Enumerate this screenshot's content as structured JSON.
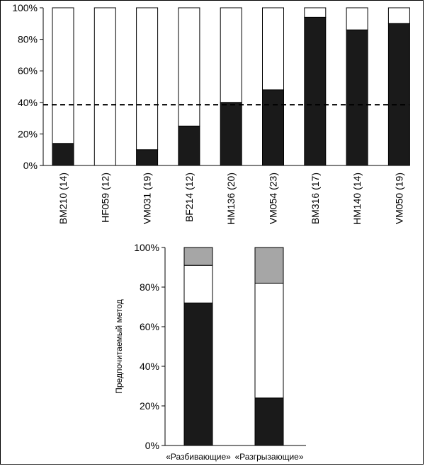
{
  "chart_data": [
    {
      "type": "bar",
      "stacked": true,
      "categories": [
        "BM210 (14)",
        "HF059 (12)",
        "VM031 (19)",
        "BF214 (12)",
        "HM136 (20)",
        "VM054 (23)",
        "BM316 (17)",
        "HM140 (14)",
        "VM050 (19)"
      ],
      "series": [
        {
          "color": "#1a1a1a",
          "values": [
            14,
            0,
            10,
            25,
            40,
            48,
            94,
            86,
            90
          ]
        },
        {
          "color": "#ffffff",
          "values": [
            86,
            100,
            90,
            75,
            60,
            52,
            6,
            14,
            10
          ]
        }
      ],
      "ylim": [
        0,
        100
      ],
      "yticks": [
        "0%",
        "20%",
        "40%",
        "60%",
        "80%",
        "100%"
      ],
      "reference_line": 38.5,
      "title": "",
      "xlabel": "",
      "ylabel": ""
    },
    {
      "type": "bar",
      "stacked": true,
      "categories": [
        "«Разбивающие»",
        "«Разгрызающие»"
      ],
      "series": [
        {
          "color": "#1a1a1a",
          "values": [
            72,
            24
          ]
        },
        {
          "color": "#ffffff",
          "values": [
            19,
            58
          ]
        },
        {
          "color": "#a6a6a6",
          "values": [
            9,
            18
          ]
        }
      ],
      "ylim": [
        0,
        100
      ],
      "yticks": [
        "0%",
        "20%",
        "40%",
        "60%",
        "80%",
        "100%"
      ],
      "ylabel": "Предпочитаемый метод",
      "title": "",
      "xlabel": ""
    }
  ]
}
